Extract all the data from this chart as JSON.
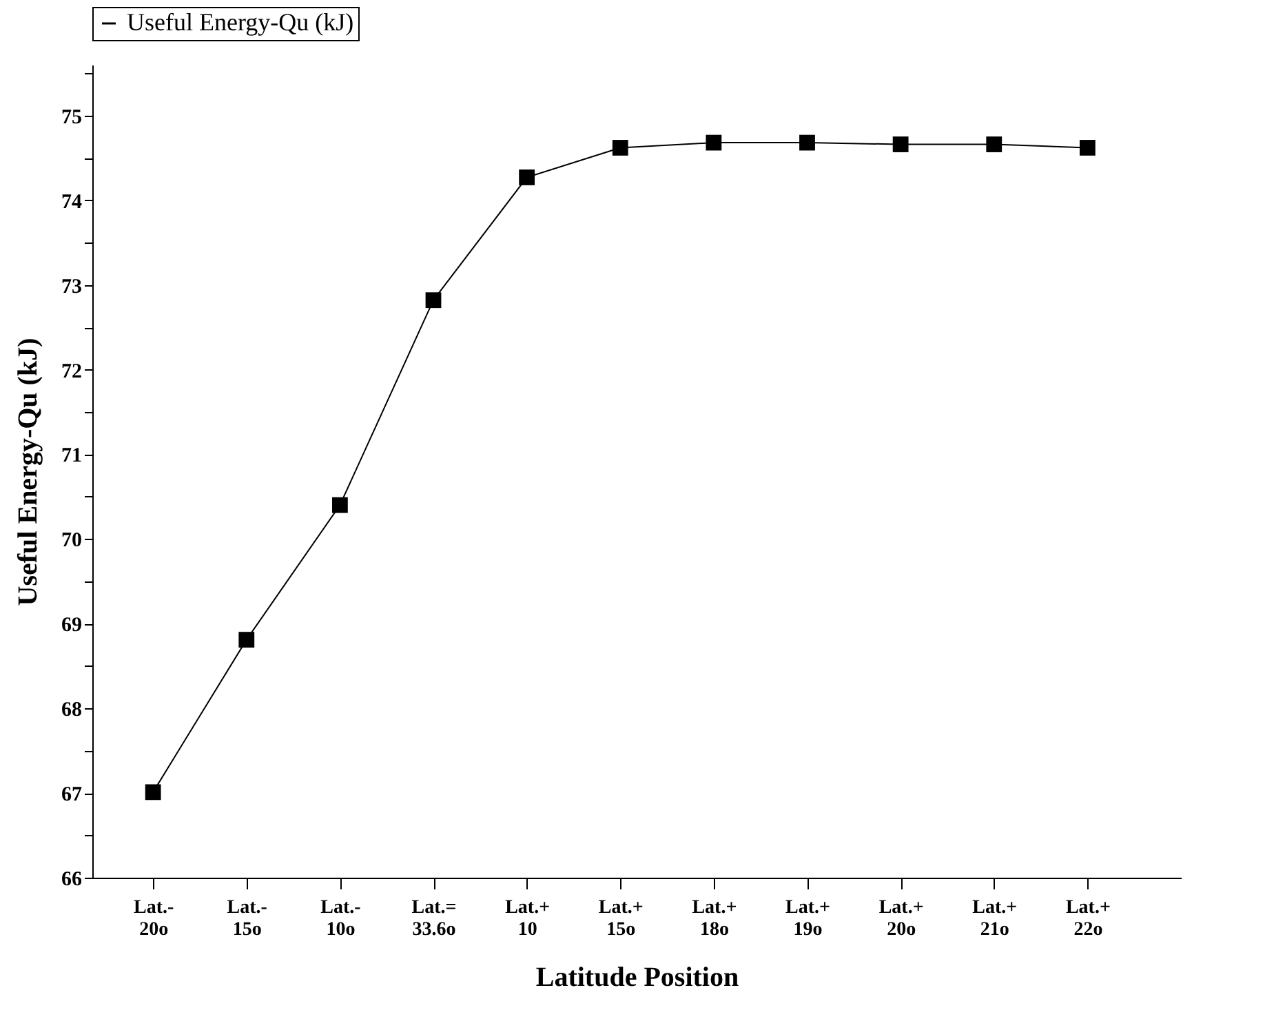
{
  "chart_data": {
    "type": "line",
    "xlabel": "Latitude Position",
    "ylabel": "Useful Energy-Qu (kJ)",
    "categories": [
      "Lat.- 20o",
      "Lat.- 15o",
      "Lat.- 10o",
      "Lat.= 33.6o",
      "Lat.+ 10",
      "Lat.+ 15o",
      "Lat.+ 18o",
      "Lat.+ 19o",
      "Lat.+ 20o",
      "Lat.+ 21o",
      "Lat.+ 22o"
    ],
    "series": [
      {
        "name": "Useful Energy-Qu (kJ)",
        "color": "#000000",
        "values": [
          67.01,
          68.81,
          70.4,
          72.82,
          74.27,
          74.62,
          74.68,
          74.68,
          74.66,
          74.66,
          74.62
        ]
      }
    ],
    "ylim": [
      66,
      75.6
    ],
    "yticks": [
      66,
      {
        "value": 66.5,
        "label": null
      },
      67,
      {
        "value": 67.5,
        "label": null
      },
      68,
      {
        "value": 68.5,
        "label": null
      },
      69,
      {
        "value": 69.5,
        "label": null
      },
      70,
      {
        "value": 70.5,
        "label": null
      },
      71,
      {
        "value": 71.5,
        "label": null
      },
      72,
      {
        "value": 72.5,
        "label": null
      },
      73,
      {
        "value": 73.5,
        "label": null
      },
      74,
      {
        "value": 74.5,
        "label": null
      },
      75,
      {
        "value": 75.5,
        "label": null
      }
    ],
    "marker": "square",
    "line_style": "solid",
    "legend": "top",
    "grid": false
  }
}
